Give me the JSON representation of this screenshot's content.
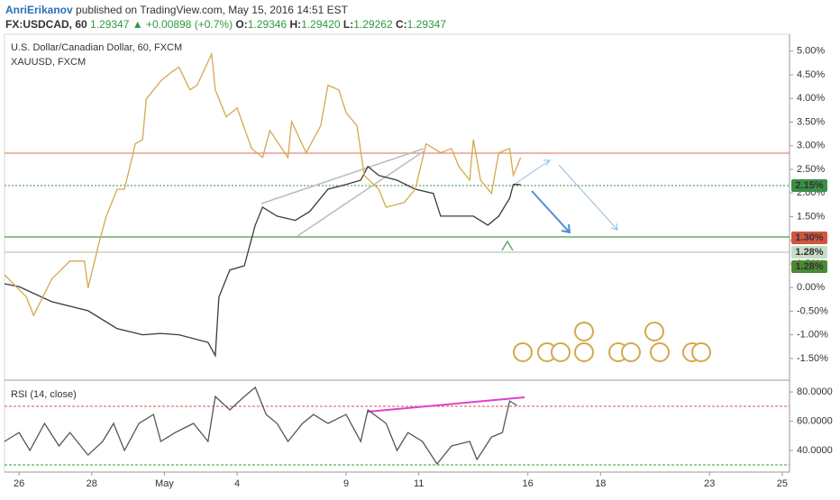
{
  "header": {
    "author": "AnriErikanov",
    "published": "published on TradingView.com, May 15, 2016 14:51 EST",
    "symbol": "FX:USDCAD, 60",
    "last": "1.29347",
    "arrow": "▲",
    "change": "+0.00898 (+0.7%)",
    "o_label": "O:",
    "o": "1.29346",
    "h_label": "H:",
    "h": "1.29420",
    "l_label": "L:",
    "l": "1.29262",
    "c_label": "C:",
    "c": "1.29347"
  },
  "chart_data": [
    {
      "type": "line",
      "xlim": [
        -0.4,
        21.2
      ],
      "ylim": [
        -1.96,
        5.32
      ],
      "yticks": [
        {
          "value": 5,
          "label": "5.00%"
        },
        {
          "value": 4.5,
          "label": "4.50%"
        },
        {
          "value": 4,
          "label": "4.00%"
        },
        {
          "value": 3.5,
          "label": "3.50%"
        },
        {
          "value": 3,
          "label": "3.00%"
        },
        {
          "value": 2.5,
          "label": "2.50%"
        },
        {
          "value": 2,
          "label": "2.00%"
        },
        {
          "value": 1.5,
          "label": "1.50%"
        },
        {
          "value": 1,
          "label": "1.00%"
        },
        {
          "value": 0.5,
          "label": "0.50%"
        },
        {
          "value": 0,
          "label": "0.00%"
        },
        {
          "value": -0.5,
          "label": "-0.50%"
        },
        {
          "value": -1,
          "label": "-1.00%"
        },
        {
          "value": -1.5,
          "label": "-1.50%"
        }
      ],
      "price_labels": [
        {
          "label": "2.15%",
          "color": "#3a8f46"
        },
        {
          "label": "1.30%",
          "color": "#d2553f"
        },
        {
          "label": "1.28%",
          "color": "#c9ddc6"
        },
        {
          "label": "1.28%",
          "color": "#4b8a35"
        }
      ],
      "series": [
        {
          "name": "U.S. Dollar/Canadian Dollar, 60, FXCM",
          "color": "#3b3b3b",
          "x": [
            -0.4,
            0,
            0.9,
            1.9,
            2.7,
            3.4,
            3.9,
            4.4,
            5.2,
            5.4,
            5.5,
            5.8,
            6.2,
            6.5,
            6.7,
            7.1,
            7.6,
            8.0,
            8.5,
            9.0,
            9.4,
            9.6,
            9.9,
            10.4,
            10.9,
            11.4,
            11.6,
            12.0,
            12.5,
            12.9,
            13.2,
            13.5,
            13.6,
            13.8
          ],
          "values": [
            0.08,
            0.02,
            -0.3,
            -0.49,
            -0.87,
            -1.0,
            -0.97,
            -1.0,
            -1.16,
            -1.44,
            -0.2,
            0.37,
            0.46,
            1.32,
            1.7,
            1.51,
            1.42,
            1.61,
            2.08,
            2.18,
            2.27,
            2.56,
            2.37,
            2.27,
            2.08,
            1.99,
            1.51,
            1.51,
            1.51,
            1.32,
            1.51,
            1.89,
            2.18,
            2.18
          ]
        },
        {
          "name": "XAUUSD, FXCM",
          "color": "#d4a94c",
          "x": [
            -0.4,
            0.2,
            0.4,
            0.9,
            1.4,
            1.8,
            1.9,
            2.2,
            2.4,
            2.7,
            2.9,
            3.2,
            3.4,
            3.5,
            3.9,
            4.2,
            4.4,
            4.7,
            4.9,
            5.3,
            5.4,
            5.7,
            6.0,
            6.4,
            6.7,
            6.9,
            7.4,
            7.5,
            7.9,
            8.3,
            8.5,
            8.8,
            9.0,
            9.3,
            9.5,
            9.9,
            10.1,
            10.6,
            10.9,
            11.2,
            11.6,
            11.9,
            12.1,
            12.4,
            12.5,
            12.7,
            13.0,
            13.2,
            13.5,
            13.6,
            13.8
          ],
          "values": [
            0.27,
            -0.2,
            -0.59,
            0.18,
            0.56,
            0.56,
            -0.01,
            0.94,
            1.51,
            2.08,
            2.08,
            3.04,
            3.13,
            3.99,
            4.37,
            4.56,
            4.66,
            4.18,
            4.28,
            4.94,
            4.18,
            3.61,
            3.8,
            2.94,
            2.75,
            3.32,
            2.75,
            3.51,
            2.85,
            3.42,
            4.28,
            4.18,
            3.7,
            3.42,
            2.37,
            2.08,
            1.7,
            1.8,
            2.08,
            3.04,
            2.85,
            2.94,
            2.56,
            2.27,
            3.13,
            2.27,
            1.99,
            2.85,
            2.94,
            2.37,
            2.75
          ]
        }
      ]
    },
    {
      "type": "line",
      "title": "RSI (14, close)",
      "xlim": [
        -0.4,
        21.2
      ],
      "ylim": [
        27.7,
        86.2
      ],
      "xticks": [
        {
          "value": 0,
          "label": "26"
        },
        {
          "value": 2,
          "label": "28"
        },
        {
          "value": 4,
          "label": "May"
        },
        {
          "value": 6,
          "label": "4"
        },
        {
          "value": 9,
          "label": "9"
        },
        {
          "value": 11,
          "label": "11"
        },
        {
          "value": 14,
          "label": "16"
        },
        {
          "value": 16,
          "label": "18"
        },
        {
          "value": 19,
          "label": "23"
        },
        {
          "value": 21,
          "label": "25"
        }
      ],
      "yticks": [
        {
          "value": 80,
          "label": "80.0000"
        },
        {
          "value": 60,
          "label": "60.0000"
        },
        {
          "value": 40,
          "label": "40.0000"
        }
      ],
      "series": [
        {
          "color": "#555555",
          "x": [
            -0.4,
            0.0,
            0.3,
            0.7,
            1.1,
            1.4,
            1.9,
            2.3,
            2.6,
            2.9,
            3.3,
            3.7,
            3.9,
            4.3,
            4.8,
            5.2,
            5.4,
            5.8,
            6.2,
            6.5,
            6.8,
            7.1,
            7.4,
            7.8,
            8.1,
            8.5,
            9.0,
            9.4,
            9.6,
            10.1,
            10.4,
            10.7,
            11.1,
            11.5,
            11.9,
            12.4,
            12.6,
            13.0,
            13.3,
            13.5,
            13.7
          ],
          "values": [
            46.2,
            52.3,
            40.0,
            58.5,
            43.1,
            52.3,
            36.9,
            46.2,
            58.5,
            40.0,
            58.5,
            64.6,
            46.2,
            52.3,
            58.5,
            46.2,
            76.9,
            67.7,
            76.9,
            83.1,
            64.6,
            58.5,
            46.2,
            58.5,
            64.6,
            58.5,
            64.6,
            46.2,
            67.7,
            58.5,
            40.0,
            52.3,
            46.2,
            30.8,
            43.1,
            46.2,
            33.8,
            49.2,
            52.3,
            73.8,
            70.8
          ]
        }
      ]
    }
  ]
}
